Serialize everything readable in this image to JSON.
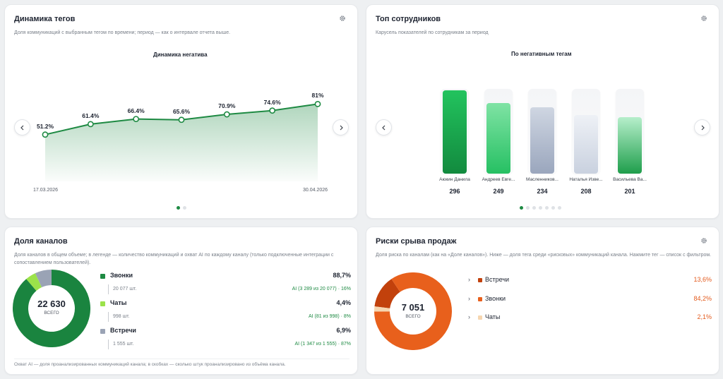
{
  "colors": {
    "accent": "#1e8a43",
    "orange": "#e8601c",
    "red_dark": "#c2410c",
    "light": "#f6d6b0"
  },
  "tags": {
    "title": "Динамика тегов",
    "subtitle": "Доля коммуникаций с выбранным тегом по времени; период — как о интервале отчета выше.",
    "chart_title": "Динамика негатива",
    "date_start": "17.03.2026",
    "date_end": "30.04.2026"
  },
  "chart_data": [
    {
      "type": "area",
      "title": "Динамика негатива",
      "x": [
        "17.03.2026",
        "",
        "",
        "",
        "",
        "",
        "30.04.2026"
      ],
      "values": [
        51.2,
        61.4,
        66.4,
        65.6,
        70.9,
        74.6,
        81
      ],
      "labels": [
        "51.2%",
        "61.4%",
        "66.4%",
        "65.6%",
        "70.9%",
        "74.6%",
        "81%"
      ]
    },
    {
      "type": "bar",
      "title": "По негативным тегам",
      "categories": [
        "Аюкин Данила",
        "Андреев Евге...",
        "Масленников...",
        "Наталья Изве...",
        "Васильева Ва..."
      ],
      "values": [
        296,
        249,
        234,
        208,
        201
      ]
    },
    {
      "type": "pie",
      "categories": [
        "Звонки",
        "Чаты",
        "Встречи"
      ],
      "values": [
        88.7,
        4.4,
        6.9
      ]
    },
    {
      "type": "pie",
      "categories": [
        "Встречи",
        "Звонки",
        "Чаты"
      ],
      "values": [
        13.6,
        84.2,
        2.1
      ]
    }
  ],
  "staff": {
    "title": "Топ сотрудников",
    "subtitle": "Карусель показателей по сотрудникам за период",
    "chart_title": "По негативным тегам",
    "bars": [
      {
        "name": "Аюкин Данила",
        "value": "296"
      },
      {
        "name": "Андреев Евге...",
        "value": "249"
      },
      {
        "name": "Масленников...",
        "value": "234"
      },
      {
        "name": "Наталья Изве...",
        "value": "208"
      },
      {
        "name": "Васильева Ва...",
        "value": "201"
      }
    ]
  },
  "channels": {
    "title": "Доля каналов",
    "subtitle": "Доля каналов в общем объеме; в легенде — количество коммуникаций и охват AI по каждому каналу (только подключенные интеграции с сопоставлением пользователей).",
    "total": "22 630",
    "total_label": "ВСЕГО",
    "items": [
      {
        "name": "Звонки",
        "pct": "88,7%",
        "count": "20 077 шт.",
        "ai": "AI (3 289 из 20 077) · 16%"
      },
      {
        "name": "Чаты",
        "pct": "4,4%",
        "count": "998 шт.",
        "ai": "AI (81 из 998) · 8%"
      },
      {
        "name": "Встречи",
        "pct": "6,9%",
        "count": "1 555 шт.",
        "ai": "AI (1 347 из 1 555) · 87%"
      }
    ],
    "footnote": "Охват AI — доля проанализированных коммуникаций канала; в скобках — сколько штук проанализировано из объёма канала."
  },
  "risks": {
    "title": "Риски срыва продаж",
    "subtitle": "Доля риска по каналам (как на «Доле каналов»). Ниже — доля тега среди «рисковых» коммуникаций канала. Нажмите тег — список с фильтром.",
    "total": "7 051",
    "total_label": "ВСЕГО",
    "items": [
      {
        "name": "Встречи",
        "pct": "13,6%"
      },
      {
        "name": "Звонки",
        "pct": "84,2%"
      },
      {
        "name": "Чаты",
        "pct": "2,1%"
      }
    ]
  }
}
